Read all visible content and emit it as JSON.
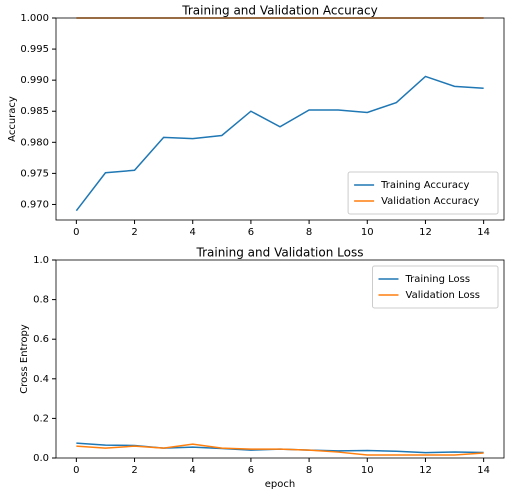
{
  "chart_data": [
    {
      "type": "line",
      "title": "Training and Validation Accuracy",
      "y_label": "Accuracy",
      "x": [
        0,
        1,
        2,
        3,
        4,
        5,
        6,
        7,
        8,
        9,
        10,
        11,
        12,
        13,
        14
      ],
      "series": [
        {
          "name": "Training Accuracy",
          "color": "#1f77b4",
          "values": [
            0.969,
            0.9751,
            0.9755,
            0.9808,
            0.9806,
            0.9811,
            0.985,
            0.9825,
            0.9852,
            0.9852,
            0.9848,
            0.9864,
            0.9906,
            0.989,
            0.9887
          ]
        },
        {
          "name": "Validation Accuracy",
          "color": "#ff7f0e",
          "values": [
            1.0,
            1.0,
            1.0,
            1.0,
            1.0,
            1.0,
            1.0,
            1.0,
            1.0,
            1.0,
            1.0,
            1.0,
            1.0,
            1.0,
            1.0
          ]
        }
      ],
      "xlim": [
        -0.7,
        14.7
      ],
      "xticks": [
        0,
        2,
        4,
        6,
        8,
        10,
        12,
        14
      ],
      "ylim": [
        0.9675,
        1.0
      ],
      "yticks": [
        {
          "value": 0.97,
          "label": "0.970"
        },
        0.975,
        {
          "value": 0.98,
          "label": "0.980"
        },
        0.985,
        {
          "value": 0.99,
          "label": "0.990"
        },
        0.995,
        {
          "value": 1.0,
          "label": "1.000"
        }
      ],
      "legend": "lower right"
    },
    {
      "type": "line",
      "title": "Training and Validation Loss",
      "y_label": "Cross Entropy",
      "x_label": "epoch",
      "x": [
        0,
        1,
        2,
        3,
        4,
        5,
        6,
        7,
        8,
        9,
        10,
        11,
        12,
        13,
        14
      ],
      "series": [
        {
          "name": "Training Loss",
          "color": "#1f77b4",
          "values": [
            0.075,
            0.065,
            0.063,
            0.05,
            0.055,
            0.048,
            0.04,
            0.045,
            0.04,
            0.036,
            0.038,
            0.034,
            0.027,
            0.03,
            0.028
          ]
        },
        {
          "name": "Validation Loss",
          "color": "#ff7f0e",
          "values": [
            0.06,
            0.05,
            0.06,
            0.05,
            0.07,
            0.05,
            0.045,
            0.045,
            0.04,
            0.03,
            0.015,
            0.015,
            0.015,
            0.015,
            0.025
          ]
        }
      ],
      "xlim": [
        -0.7,
        14.7
      ],
      "xticks": [
        0,
        2,
        4,
        6,
        8,
        10,
        12,
        14
      ],
      "ylim": [
        0,
        1.0
      ],
      "yticks": [
        {
          "value": 0,
          "label": "0.0"
        },
        0.2,
        0.4,
        0.6,
        0.8,
        {
          "value": 1.0,
          "label": "1.0"
        }
      ],
      "legend": "upper right"
    }
  ]
}
